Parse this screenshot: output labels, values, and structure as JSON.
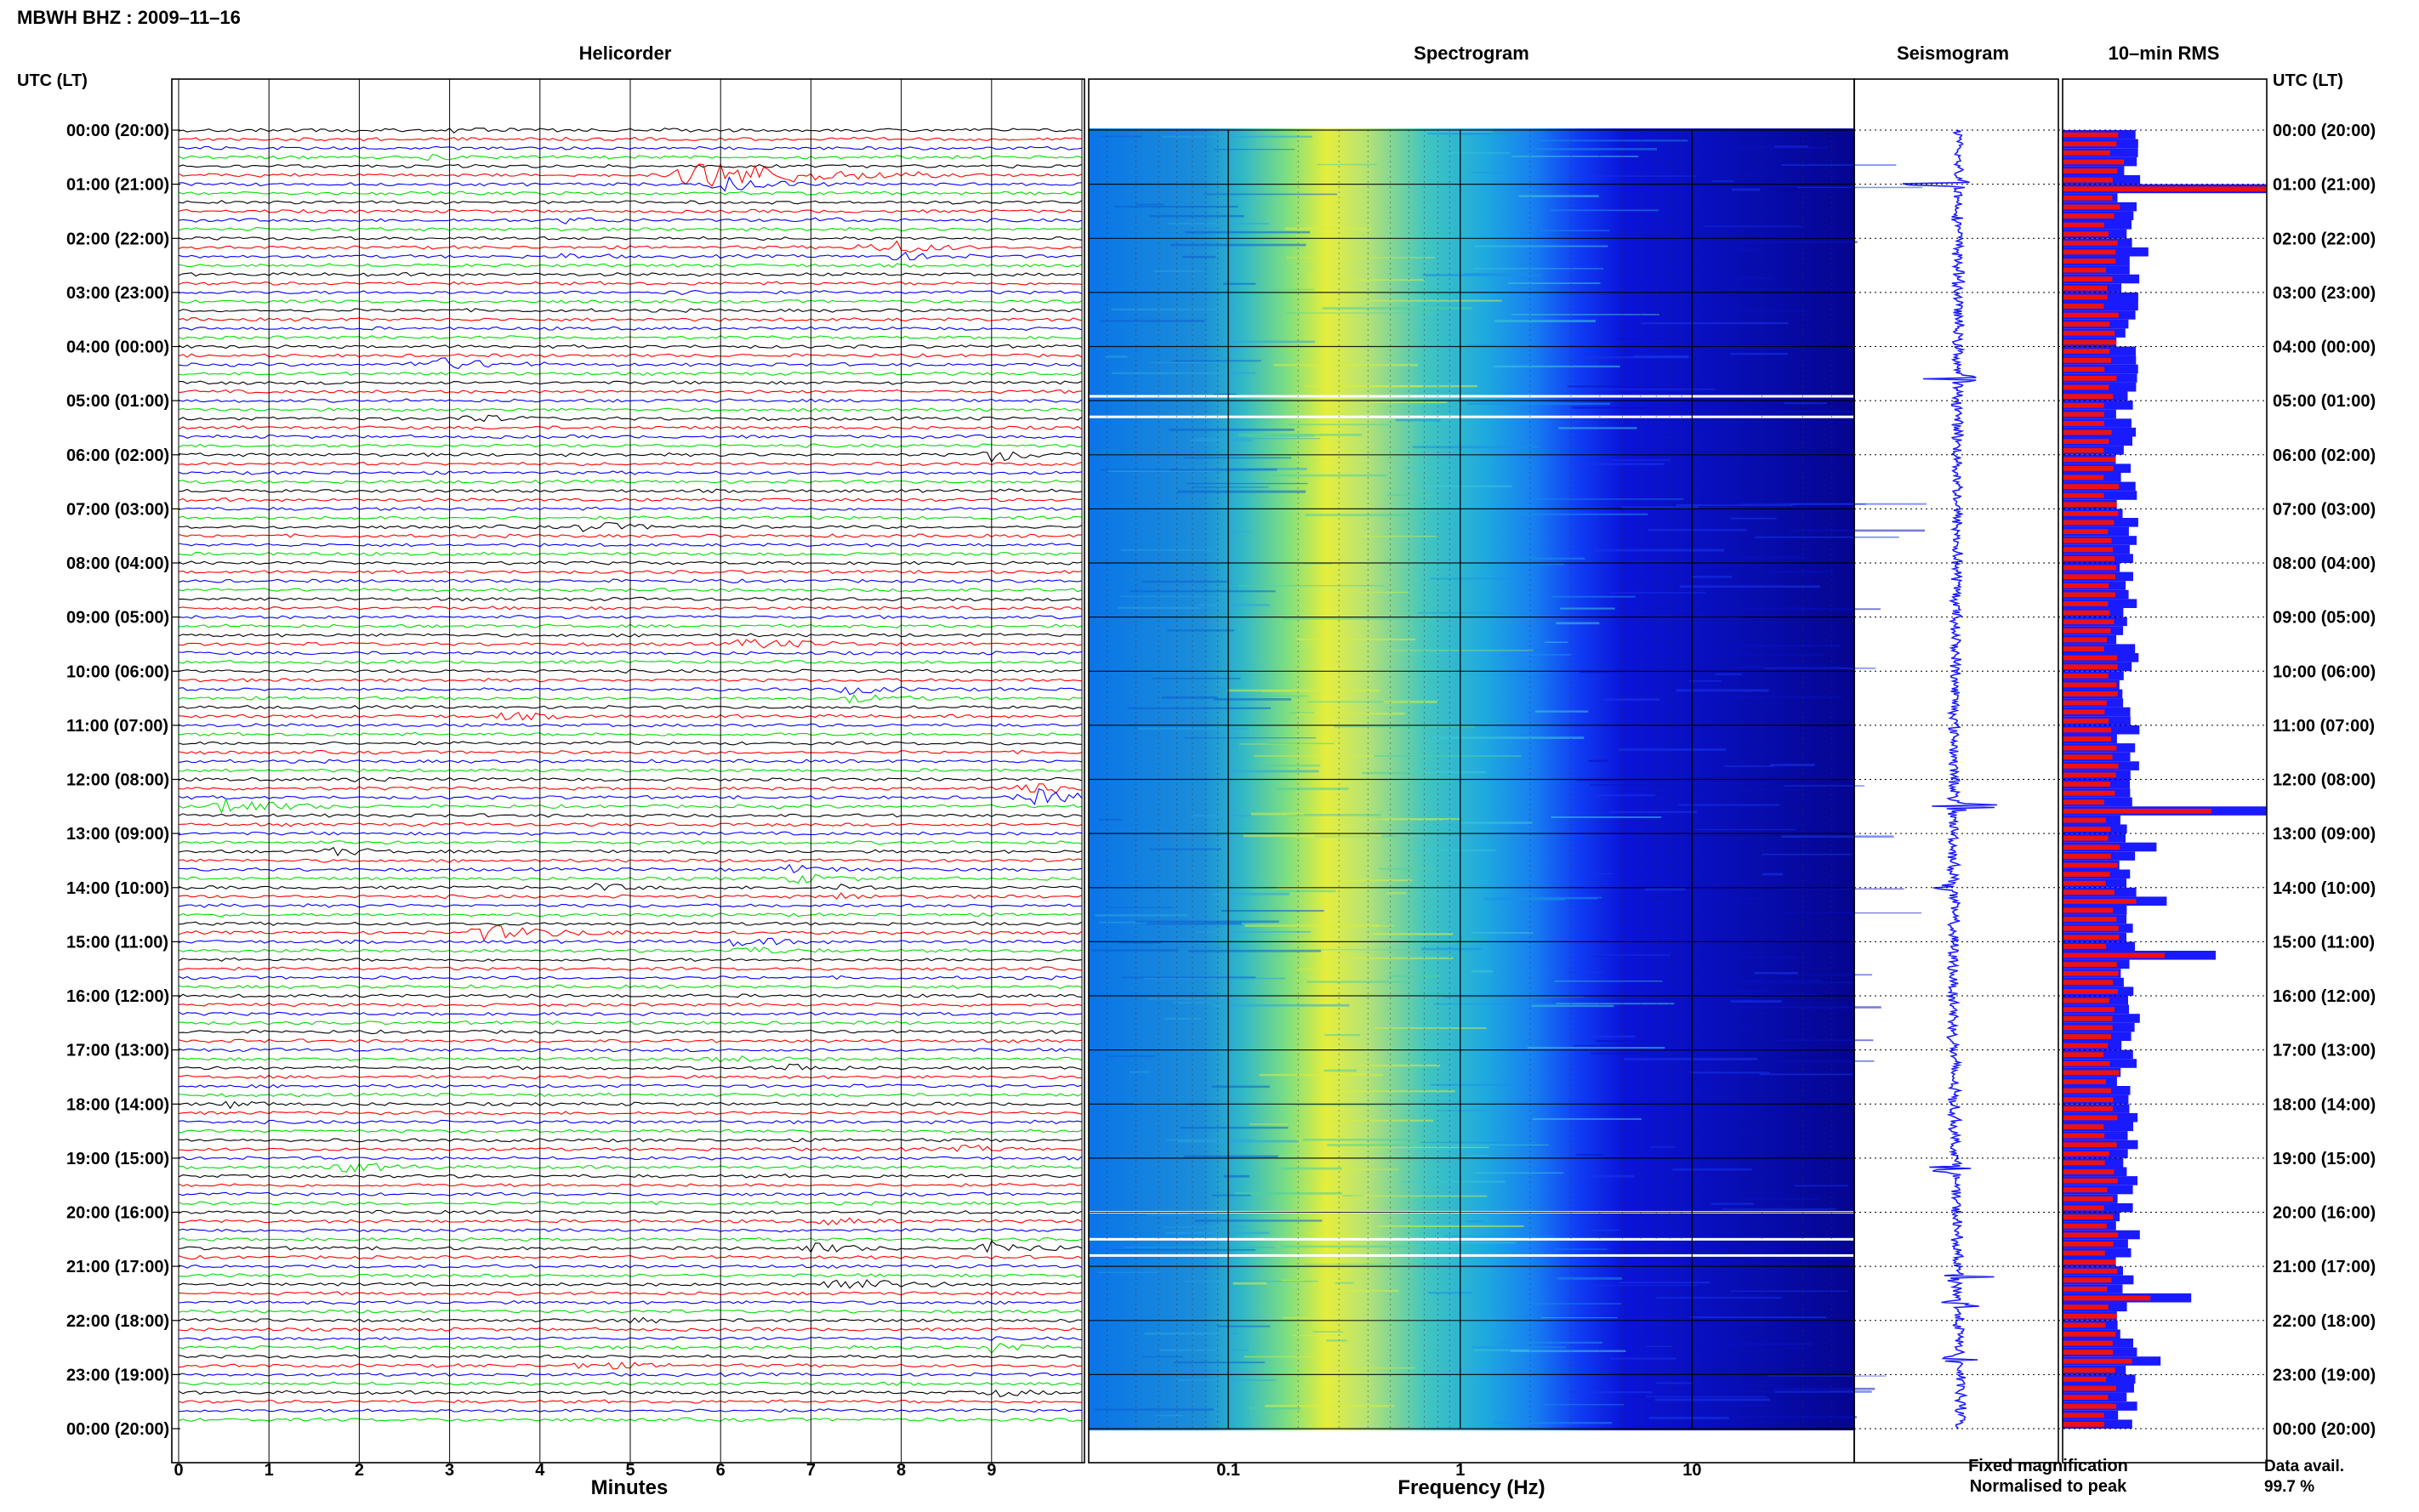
{
  "header": {
    "station_title": "MBWH BHZ : 2009–11–16",
    "utc_label": "UTC (LT)"
  },
  "panels": {
    "helicorder": "Helicorder",
    "spectrogram": "Spectrogram",
    "seismogram": "Seismogram",
    "rms": "10–min RMS"
  },
  "legend": {
    "fixed": "Fixed magnification",
    "normalised": "Normalised to peak",
    "fixed_color": "#1a1aff",
    "normalised_color": "#ee1111"
  },
  "data_availability": {
    "label": "Data avail.",
    "value": "99.7 %"
  },
  "chart_data": [
    {
      "type": "line",
      "panel": "helicorder",
      "xlabel": "Minutes",
      "ylabel": "",
      "xlim": [
        0,
        10
      ],
      "x_ticks": [
        0,
        1,
        2,
        3,
        4,
        5,
        6,
        7,
        8,
        9
      ],
      "trace_colors": [
        "#000000",
        "#ff0000",
        "#0000ff",
        "#00dd00"
      ],
      "trace_interval_minutes": 10,
      "traces_count": 144,
      "hour_labels": [
        "00:00 (20:00)",
        "01:00 (21:00)",
        "02:00 (22:00)",
        "03:00 (23:00)",
        "04:00 (00:00)",
        "05:00 (01:00)",
        "06:00 (02:00)",
        "07:00 (03:00)",
        "08:00 (04:00)",
        "09:00 (05:00)",
        "10:00 (06:00)",
        "11:00 (07:00)",
        "12:00 (08:00)",
        "13:00 (09:00)",
        "14:00 (10:00)",
        "15:00 (11:00)",
        "16:00 (12:00)",
        "17:00 (13:00)",
        "18:00 (14:00)",
        "19:00 (15:00)",
        "20:00 (16:00)",
        "21:00 (17:00)",
        "22:00 (18:00)",
        "23:00 (19:00)",
        "00:00 (20:00)"
      ],
      "events": [
        {
          "hour": 0.05,
          "minute": 3.0,
          "duration": 0.7,
          "amp": 0.5
        },
        {
          "hour": 0.55,
          "minute": 2.8,
          "duration": 0.8,
          "amp": 0.5
        },
        {
          "hour": 0.85,
          "minute": 5.8,
          "duration": 2.6,
          "amp": 3.0
        },
        {
          "hour": 1.0,
          "minute": 6.0,
          "duration": 1.2,
          "amp": 1.5
        },
        {
          "hour": 1.6,
          "minute": 4.3,
          "duration": 0.9,
          "amp": 0.6
        },
        {
          "hour": 1.7,
          "minute": 7.1,
          "duration": 0.7,
          "amp": 0.6
        },
        {
          "hour": 2.1,
          "minute": 7.6,
          "duration": 1.2,
          "amp": 0.8
        },
        {
          "hour": 2.25,
          "minute": 7.9,
          "duration": 1.0,
          "amp": 0.8
        },
        {
          "hour": 2.4,
          "minute": 4.2,
          "duration": 0.8,
          "amp": 0.5
        },
        {
          "hour": 2.95,
          "minute": 5.4,
          "duration": 0.8,
          "amp": 0.4
        },
        {
          "hour": 4.35,
          "minute": 2.7,
          "duration": 1.4,
          "amp": 1.6
        },
        {
          "hour": 5.3,
          "minute": 3.2,
          "duration": 0.9,
          "amp": 0.8
        },
        {
          "hour": 5.95,
          "minute": 9.0,
          "duration": 0.9,
          "amp": 1.4
        },
        {
          "hour": 7.3,
          "minute": 4.5,
          "duration": 1.1,
          "amp": 1.0
        },
        {
          "hour": 9.5,
          "minute": 6.3,
          "duration": 1.6,
          "amp": 0.9
        },
        {
          "hour": 10.4,
          "minute": 7.4,
          "duration": 1.0,
          "amp": 0.8
        },
        {
          "hour": 10.85,
          "minute": 3.6,
          "duration": 1.0,
          "amp": 0.7
        },
        {
          "hour": 12.0,
          "minute": 2.0,
          "duration": 0.7,
          "amp": 0.5
        },
        {
          "hour": 12.25,
          "minute": 9.4,
          "duration": 1.2,
          "amp": 1.8
        },
        {
          "hour": 12.5,
          "minute": 0.5,
          "duration": 1.2,
          "amp": 1.8
        },
        {
          "hour": 13.3,
          "minute": 1.6,
          "duration": 1.0,
          "amp": 0.9
        },
        {
          "hour": 13.75,
          "minute": 6.8,
          "duration": 1.1,
          "amp": 0.8
        },
        {
          "hour": 14.05,
          "minute": 4.6,
          "duration": 1.0,
          "amp": 0.6
        },
        {
          "hour": 14.1,
          "minute": 7.3,
          "duration": 0.5,
          "amp": 0.8
        },
        {
          "hour": 14.85,
          "minute": 3.4,
          "duration": 1.8,
          "amp": 1.4
        },
        {
          "hour": 15.1,
          "minute": 6.2,
          "duration": 1.1,
          "amp": 0.8
        },
        {
          "hour": 17.35,
          "minute": 6.7,
          "duration": 0.8,
          "amp": 1.0
        },
        {
          "hour": 17.1,
          "minute": 6.0,
          "duration": 1.4,
          "amp": 0.5
        },
        {
          "hour": 18.0,
          "minute": 0.5,
          "duration": 0.7,
          "amp": 0.8
        },
        {
          "hour": 19.1,
          "minute": 1.8,
          "duration": 1.2,
          "amp": 1.0
        },
        {
          "hour": 18.85,
          "minute": 8.7,
          "duration": 0.9,
          "amp": 0.6
        },
        {
          "hour": 20.15,
          "minute": 7.2,
          "duration": 1.1,
          "amp": 0.6
        },
        {
          "hour": 20.65,
          "minute": 7.0,
          "duration": 1.0,
          "amp": 1.0
        },
        {
          "hour": 20.7,
          "minute": 9.0,
          "duration": 1.0,
          "amp": 1.4
        },
        {
          "hour": 21.35,
          "minute": 7.2,
          "duration": 1.6,
          "amp": 1.3
        },
        {
          "hour": 21.95,
          "minute": 5.0,
          "duration": 0.6,
          "amp": 0.5
        },
        {
          "hour": 22.45,
          "minute": 9.0,
          "duration": 1.0,
          "amp": 1.2
        },
        {
          "hour": 22.85,
          "minute": 4.5,
          "duration": 1.2,
          "amp": 0.8
        },
        {
          "hour": 23.35,
          "minute": 9.0,
          "duration": 0.8,
          "amp": 0.8
        },
        {
          "hour": 23.95,
          "minute": 8.0,
          "duration": 0.5,
          "amp": 0.4
        }
      ]
    },
    {
      "type": "heatmap",
      "panel": "spectrogram",
      "xlabel": "Frequency (Hz)",
      "x_scale": "log",
      "xlim": [
        0.025,
        50
      ],
      "x_tick_labels": [
        "0.1",
        "1",
        "10"
      ],
      "y_axis": "UTC hour",
      "ylim": [
        0,
        24
      ],
      "colormap": [
        "#00008b",
        "#0000ff",
        "#0080ff",
        "#00c0c0",
        "#80ff80",
        "#ffff00"
      ],
      "noise_peak_hz": 0.25,
      "high_freq_cutoff_hz": 5,
      "data_gaps_hours": [
        4.92,
        5.3,
        20.0,
        20.5,
        20.8
      ]
    },
    {
      "type": "line",
      "panel": "seismogram",
      "y_axis": "UTC hour",
      "ylim": [
        0,
        24
      ],
      "spikes": [
        {
          "hour": 1.0,
          "amp": 1.0
        },
        {
          "hour": 4.6,
          "amp": 0.5
        },
        {
          "hour": 12.5,
          "amp": 1.0
        },
        {
          "hour": 14.0,
          "amp": 0.4
        },
        {
          "hour": 19.2,
          "amp": 0.6
        },
        {
          "hour": 21.2,
          "amp": 0.6
        },
        {
          "hour": 21.7,
          "amp": 0.7
        },
        {
          "hour": 22.7,
          "amp": 0.5
        }
      ]
    },
    {
      "type": "bar",
      "panel": "rms",
      "orientation": "horizontal",
      "bin_minutes": 10,
      "y_axis": "UTC hour",
      "ylim": [
        0,
        24
      ],
      "series": [
        {
          "name": "Fixed magnification",
          "color": "#1a1aff"
        },
        {
          "name": "Normalised to peak",
          "color": "#ee1111"
        }
      ],
      "hour_bins": [
        {
          "hour": 0,
          "blue": 0.3,
          "red": 0.26
        },
        {
          "hour": 0.5,
          "blue": 0.36,
          "red": 0.3
        },
        {
          "hour": 1.0,
          "blue": 1.0,
          "red": 1.0
        },
        {
          "hour": 1.3,
          "blue": 0.34,
          "red": 0.28
        },
        {
          "hour": 2.0,
          "blue": 0.34,
          "red": 0.27
        },
        {
          "hour": 2.2,
          "blue": 0.42,
          "red": 0.26
        },
        {
          "hour": 3.0,
          "blue": 0.28,
          "red": 0.22
        },
        {
          "hour": 4.5,
          "blue": 0.36,
          "red": 0.18
        },
        {
          "hour": 4.6,
          "blue": 0.36,
          "red": 0.18
        },
        {
          "hour": 7.5,
          "blue": 0.36,
          "red": 0.24
        },
        {
          "hour": 12.5,
          "blue": 1.0,
          "red": 0.73
        },
        {
          "hour": 13.2,
          "blue": 0.46,
          "red": 0.28
        },
        {
          "hour": 14.2,
          "blue": 0.51,
          "red": 0.36
        },
        {
          "hour": 15.1,
          "blue": 0.75,
          "red": 0.5
        },
        {
          "hour": 21.5,
          "blue": 0.63,
          "red": 0.43
        },
        {
          "hour": 22.6,
          "blue": 0.48,
          "red": 0.34
        }
      ]
    }
  ]
}
